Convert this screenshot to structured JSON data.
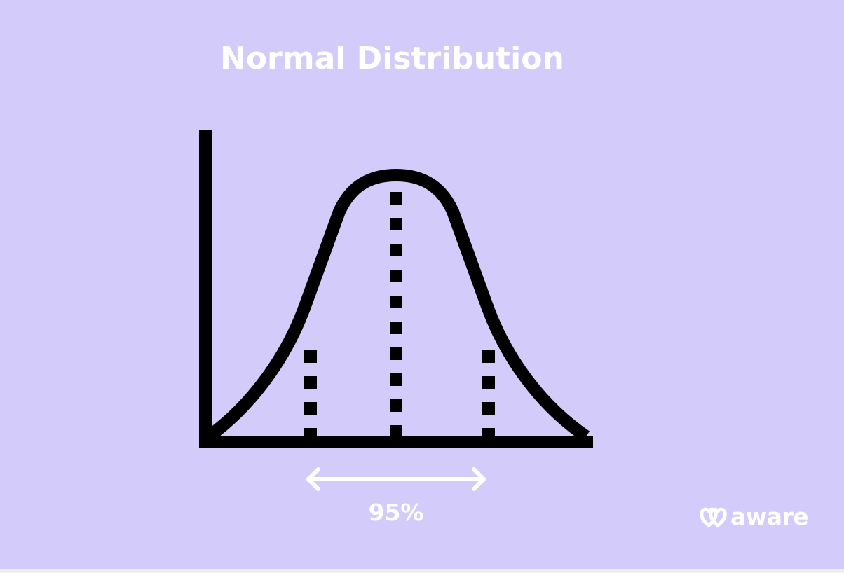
{
  "title": "Normal Distribution",
  "range_label": "95%",
  "brand": {
    "name": "aware",
    "logo_icon": "double-heart-logo-icon"
  },
  "colors": {
    "background": "#d3cbfa",
    "ink": "#000000",
    "text": "#ffffff"
  },
  "diagram": {
    "curve": "bell-curve",
    "lines": [
      "mean-line",
      "left-deviation-line",
      "right-deviation-line"
    ],
    "arrow": "double-headed-arrow"
  }
}
